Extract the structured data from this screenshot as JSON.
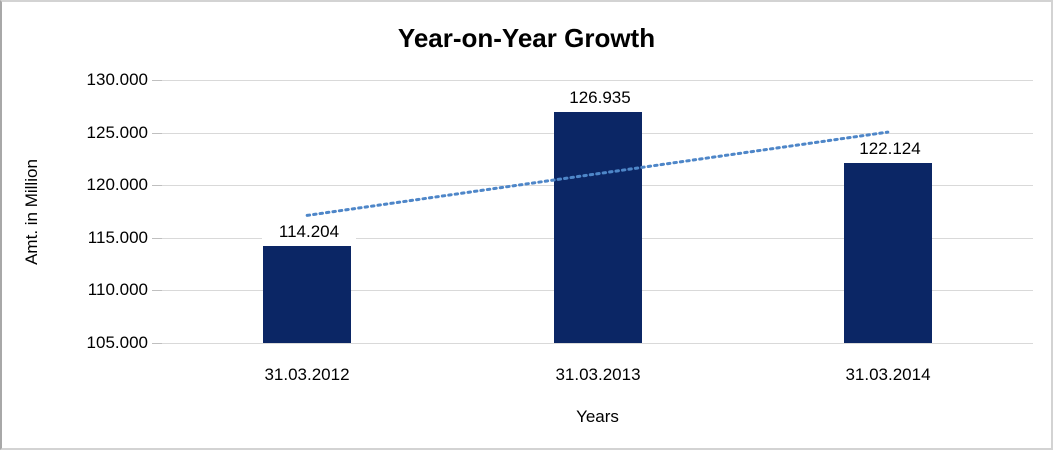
{
  "chart_data": {
    "type": "bar",
    "title": "Year-on-Year Growth",
    "xlabel": "Years",
    "ylabel": "Amt. in Million",
    "categories": [
      "31.03.2012",
      "31.03.2013",
      "31.03.2014"
    ],
    "values": [
      114.204,
      126.935,
      122.124
    ],
    "data_labels": [
      "114.204",
      "126.935",
      "122.124"
    ],
    "ylim": [
      105,
      130
    ],
    "ytick_values": [
      105,
      110,
      115,
      120,
      125,
      130
    ],
    "ytick_labels": [
      "105.000",
      "110.000",
      "115.000",
      "120.000",
      "125.000",
      "130.000"
    ],
    "grid": true,
    "legend": false,
    "trendline": {
      "type": "linear",
      "style": "dotted"
    },
    "colors": {
      "bar": "#0b2665",
      "trendline": "#4e86c8",
      "gridline": "#d9d9d9",
      "tick": "#bfbfbf",
      "text": "#000000",
      "background": "#ffffff",
      "border": "#d3d3d3"
    }
  }
}
